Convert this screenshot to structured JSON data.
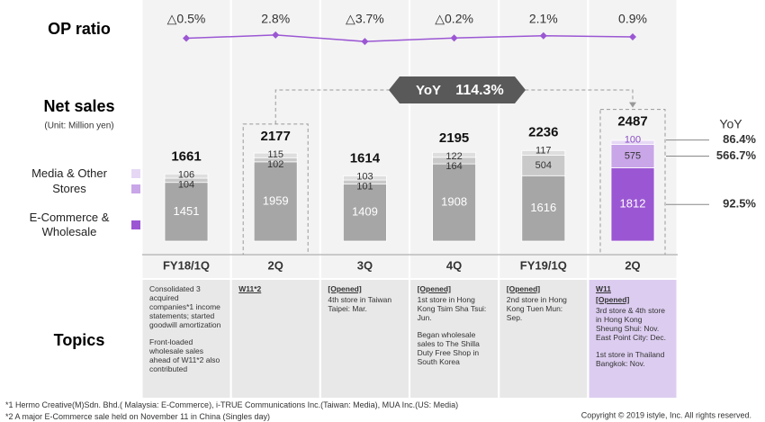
{
  "chart_data": [
    {
      "type": "line",
      "title": "OP ratio",
      "color": "#9b57d3",
      "values": [
        -0.5,
        2.8,
        -3.7,
        -0.2,
        2.1,
        0.9
      ],
      "value_labels": [
        "△0.5%",
        "2.8%",
        "△3.7%",
        "△0.2%",
        "2.1%",
        "0.9%"
      ]
    },
    {
      "type": "bar",
      "stacked": true,
      "title": "Net sales",
      "subtitle": "(Unit: Million yen)",
      "categories": [
        "FY18/1Q",
        "2Q",
        "3Q",
        "4Q",
        "FY19/1Q",
        "2Q"
      ],
      "series": [
        {
          "name": "E-Commerce & Wholesale",
          "color": "#9b57d3",
          "past_color": "#a6a6a6",
          "values": [
            1451,
            1959,
            1409,
            1908,
            1616,
            1812
          ],
          "yoy": "92.5%"
        },
        {
          "name": "Stores",
          "color": "#c9a6e8",
          "past_color": "#c9c9c9",
          "values": [
            104,
            102,
            101,
            164,
            504,
            575
          ],
          "yoy": "566.7%"
        },
        {
          "name": "Media & Other",
          "color": "#e6d8f5",
          "past_color": "#dedede",
          "values": [
            106,
            115,
            103,
            122,
            117,
            100
          ],
          "yoy": "86.4%"
        }
      ],
      "totals": [
        1661,
        2177,
        1614,
        2195,
        2236,
        2487
      ],
      "yoy_title": "YoY",
      "growth": {
        "label": "YoY",
        "value_label": "114.3%"
      }
    }
  ],
  "topics": {
    "title": "Topics",
    "columns": [
      [
        {
          "text": "Consolidated 3 acquired companies*1 income statements; started goodwill amortization"
        },
        {
          "text": "Front-loaded wholesale sales ahead of W11*2 also contributed"
        }
      ],
      [
        {
          "text": "W11*2",
          "heading": true
        }
      ],
      [
        {
          "text": "[Opened]",
          "heading": true
        },
        {
          "text": "4th store in Taiwan Taipei: Mar."
        }
      ],
      [
        {
          "text": "[Opened]",
          "heading": true
        },
        {
          "text": "1st store in Hong Kong Tsim Sha Tsui: Jun."
        },
        {
          "text": "Began wholesale sales to The Shilla Duty Free Shop in South Korea"
        }
      ],
      [
        {
          "text": "[Opened]",
          "heading": true
        },
        {
          "text": "2nd store in Hong Kong Tuen Mun: Sep."
        }
      ],
      [
        {
          "text": "W11",
          "heading": true
        },
        {
          "text": "[Opened]",
          "heading": true
        },
        {
          "text": "3rd store & 4th store in Hong Kong Sheung Shui: Nov. East Point City: Dec."
        },
        {
          "text": "1st store in Thailand Bangkok: Nov."
        }
      ]
    ]
  },
  "footnotes": [
    "*1 Hermo Creative(M)Sdn. Bhd.( Malaysia: E-Commerce), i-TRUE Communications Inc.(Taiwan: Media), MUA Inc.(US: Media)",
    "*2 A major E-Commerce sale held on November 11 in China (Singles day)"
  ],
  "copyright": "Copyright © 2019 istyle, Inc. All rights reserved."
}
